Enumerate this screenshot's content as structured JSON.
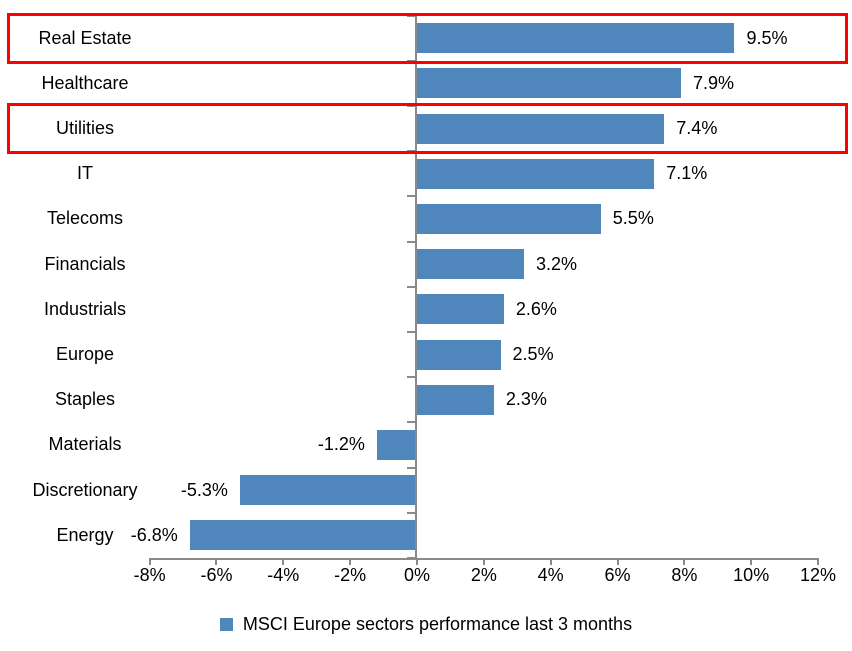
{
  "chart_data": {
    "type": "bar",
    "orientation": "horizontal",
    "title": "",
    "categories": [
      "Real Estate",
      "Healthcare",
      "Utilities",
      "IT",
      "Telecoms",
      "Financials",
      "Industrials",
      "Europe",
      "Staples",
      "Materials",
      "Discretionary",
      "Energy"
    ],
    "values": [
      9.5,
      7.9,
      7.4,
      7.1,
      5.5,
      3.2,
      2.6,
      2.5,
      2.3,
      -1.2,
      -5.3,
      -6.8
    ],
    "data_labels": [
      "9.5%",
      "7.9%",
      "7.4%",
      "7.1%",
      "5.5%",
      "3.2%",
      "2.6%",
      "2.5%",
      "2.3%",
      "-1.2%",
      "-5.3%",
      "-6.8%"
    ],
    "x_axis": {
      "min": -8,
      "max": 12,
      "step": 2,
      "tick_labels": [
        "-8%",
        "-6%",
        "-4%",
        "-2%",
        "0%",
        "2%",
        "4%",
        "6%",
        "8%",
        "10%",
        "12%"
      ]
    },
    "legend": {
      "label": "MSCI Europe sectors performance last 3 months",
      "position": "bottom"
    },
    "grid": false,
    "highlighted_categories": [
      "Real Estate",
      "Utilities"
    ],
    "colors": {
      "bar": "#4F86BC",
      "axis": "#8A8A8A",
      "highlight": "#FF0000",
      "text": "#000000"
    }
  }
}
